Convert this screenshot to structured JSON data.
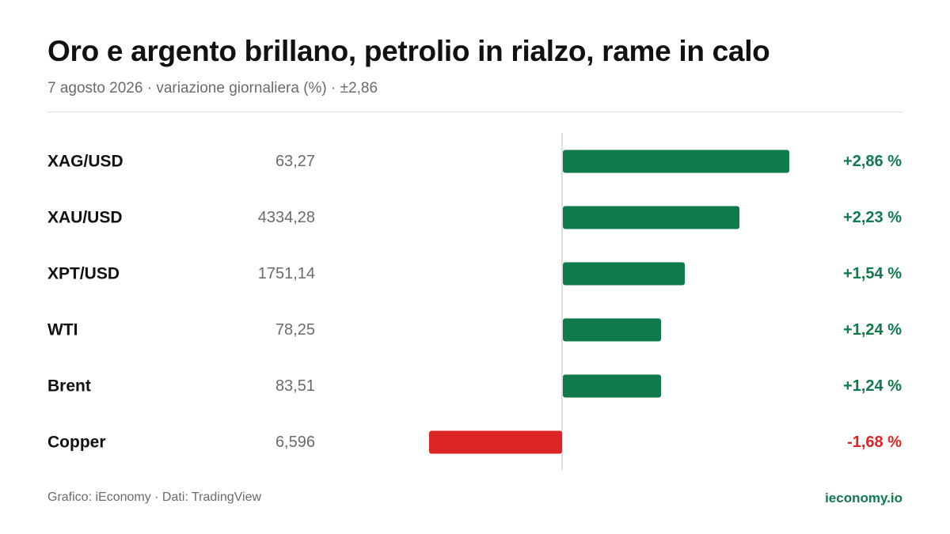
{
  "header": {
    "title": "Oro e argento brillano, petrolio in rialzo, rame in calo",
    "subtitle": "7 agosto 2026 · variazione giornaliera (%) · ±2,86"
  },
  "chart_data": {
    "type": "bar",
    "orientation": "horizontal",
    "categories": [
      "XAG/USD",
      "XAU/USD",
      "XPT/USD",
      "WTI",
      "Brent",
      "Copper"
    ],
    "prices": [
      "63,27",
      "4334,28",
      "1751,14",
      "78,25",
      "83,51",
      "6,596"
    ],
    "values": [
      2.86,
      2.23,
      1.54,
      1.24,
      1.24,
      -1.68
    ],
    "value_labels": [
      "+2,86 %",
      "+2,23 %",
      "+1,54 %",
      "+1,24 %",
      "+1,24 %",
      "-1,68 %"
    ],
    "xlim": [
      -2.86,
      2.86
    ],
    "grid": false,
    "colors": {
      "positive": "#0f7a4c",
      "negative": "#dc2626",
      "zero_line": "#d4d4d4",
      "label": "#111111",
      "price": "#6b6b6b"
    }
  },
  "footer": {
    "source": "Grafico: iEconomy · Dati: TradingView",
    "brand": "ieconomy.io"
  }
}
